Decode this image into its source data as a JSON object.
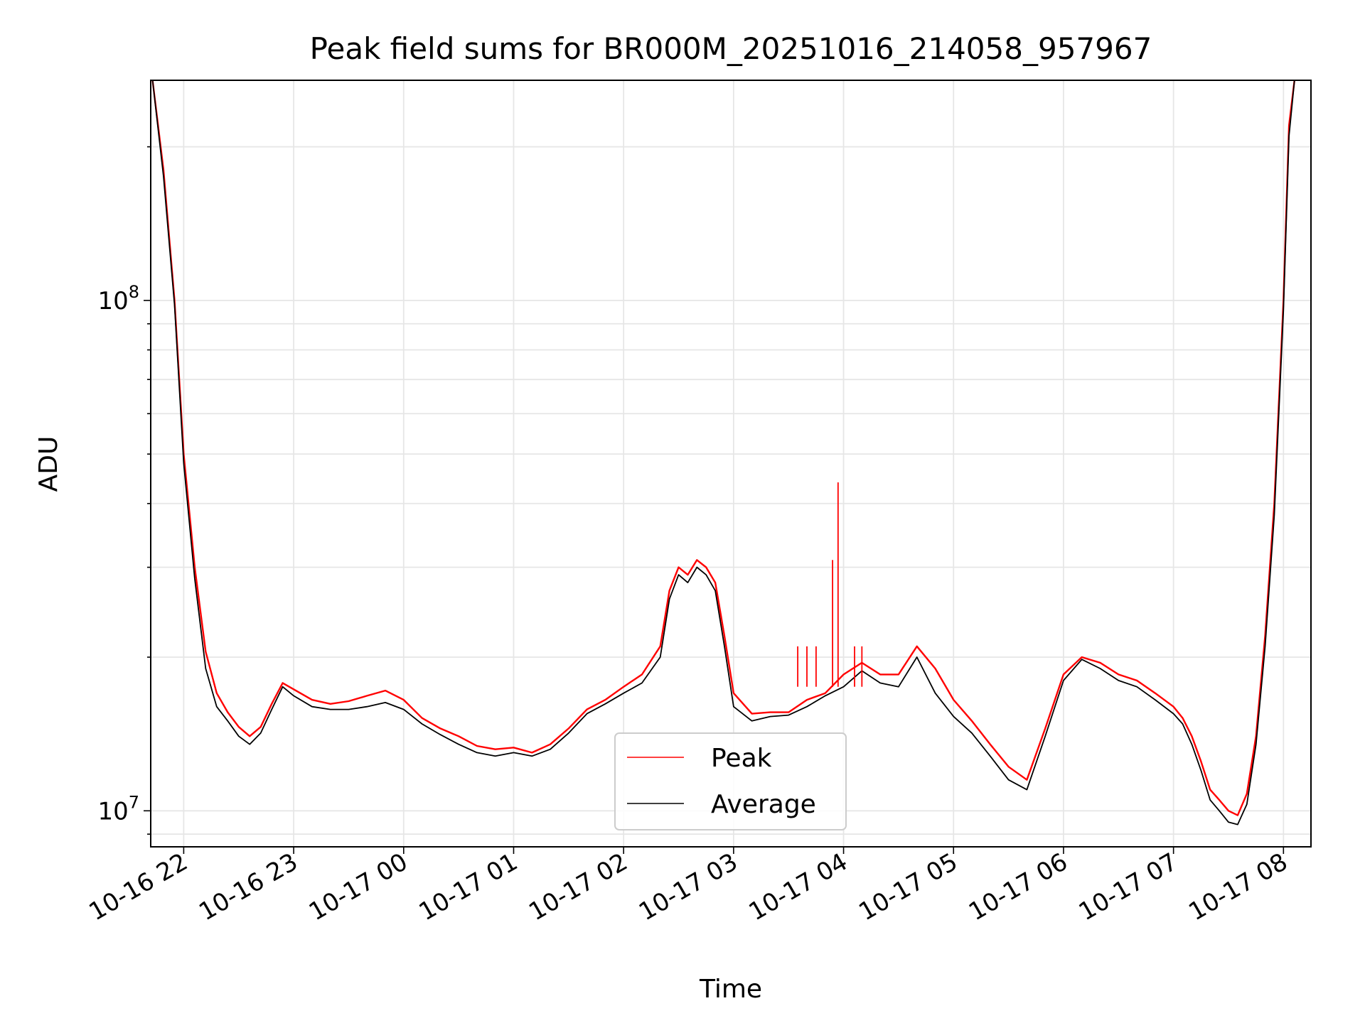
{
  "chart_data": {
    "type": "line",
    "title": "Peak field sums for BR000M_20251016_214058_957967",
    "xlabel": "Time",
    "ylabel": "ADU",
    "yscale": "log",
    "ylim": [
      8500000,
      270000000
    ],
    "xlim": [
      "2025-10-16 21:42",
      "2025-10-17 08:15"
    ],
    "x_ticks": [
      "10-16 22",
      "10-16 23",
      "10-17 00",
      "10-17 01",
      "10-17 02",
      "10-17 03",
      "10-17 04",
      "10-17 05",
      "10-17 06",
      "10-17 07",
      "10-17 08"
    ],
    "y_major_ticks": [
      {
        "value": 10000000,
        "label_base": "10",
        "label_exp": "7"
      },
      {
        "value": 100000000,
        "label_base": "10",
        "label_exp": "8"
      }
    ],
    "grid": true,
    "legend_position": "lower-center",
    "series": [
      {
        "name": "Peak",
        "color": "#ff0000",
        "x": [
          "2025-10-16 21:43",
          "2025-10-16 21:49",
          "2025-10-16 21:55",
          "2025-10-16 22:00",
          "2025-10-16 22:06",
          "2025-10-16 22:12",
          "2025-10-16 22:18",
          "2025-10-16 22:24",
          "2025-10-16 22:30",
          "2025-10-16 22:36",
          "2025-10-16 22:42",
          "2025-10-16 22:48",
          "2025-10-16 22:54",
          "2025-10-16 23:00",
          "2025-10-16 23:10",
          "2025-10-16 23:20",
          "2025-10-16 23:30",
          "2025-10-16 23:40",
          "2025-10-16 23:50",
          "2025-10-17 00:00",
          "2025-10-17 00:10",
          "2025-10-17 00:20",
          "2025-10-17 00:30",
          "2025-10-17 00:40",
          "2025-10-17 00:50",
          "2025-10-17 01:00",
          "2025-10-17 01:10",
          "2025-10-17 01:20",
          "2025-10-17 01:30",
          "2025-10-17 01:40",
          "2025-10-17 01:50",
          "2025-10-17 02:00",
          "2025-10-17 02:10",
          "2025-10-17 02:20",
          "2025-10-17 02:25",
          "2025-10-17 02:30",
          "2025-10-17 02:35",
          "2025-10-17 02:40",
          "2025-10-17 02:45",
          "2025-10-17 02:50",
          "2025-10-17 02:55",
          "2025-10-17 03:00",
          "2025-10-17 03:10",
          "2025-10-17 03:20",
          "2025-10-17 03:30",
          "2025-10-17 03:40",
          "2025-10-17 03:50",
          "2025-10-17 04:00",
          "2025-10-17 04:10",
          "2025-10-17 04:20",
          "2025-10-17 04:30",
          "2025-10-17 04:40",
          "2025-10-17 04:50",
          "2025-10-17 05:00",
          "2025-10-17 05:10",
          "2025-10-17 05:20",
          "2025-10-17 05:30",
          "2025-10-17 05:40",
          "2025-10-17 05:50",
          "2025-10-17 06:00",
          "2025-10-17 06:10",
          "2025-10-17 06:20",
          "2025-10-17 06:30",
          "2025-10-17 06:40",
          "2025-10-17 06:50",
          "2025-10-17 07:00",
          "2025-10-17 07:05",
          "2025-10-17 07:10",
          "2025-10-17 07:15",
          "2025-10-17 07:20",
          "2025-10-17 07:25",
          "2025-10-17 07:30",
          "2025-10-17 07:35",
          "2025-10-17 07:40",
          "2025-10-17 07:45",
          "2025-10-17 07:50",
          "2025-10-17 07:55",
          "2025-10-17 08:00",
          "2025-10-17 08:03",
          "2025-10-17 08:06"
        ],
        "y": [
          270000000,
          180000000,
          100000000,
          50000000,
          30000000,
          20500000,
          17000000,
          15600000,
          14600000,
          14000000,
          14600000,
          16200000,
          17800000,
          17300000,
          16500000,
          16200000,
          16400000,
          16800000,
          17200000,
          16500000,
          15200000,
          14500000,
          14000000,
          13400000,
          13200000,
          13300000,
          13000000,
          13500000,
          14500000,
          15800000,
          16500000,
          17500000,
          18500000,
          21000000,
          27000000,
          30000000,
          29000000,
          31000000,
          30000000,
          28000000,
          22000000,
          17000000,
          15500000,
          15600000,
          15600000,
          16500000,
          17000000,
          18500000,
          19500000,
          18500000,
          18500000,
          21000000,
          19000000,
          16500000,
          15000000,
          13500000,
          12200000,
          11500000,
          14500000,
          18500000,
          20000000,
          19500000,
          18500000,
          18000000,
          17000000,
          16000000,
          15200000,
          14000000,
          12500000,
          11000000,
          10500000,
          10000000,
          9800000,
          10800000,
          14000000,
          22000000,
          40000000,
          100000000,
          220000000,
          270000000
        ]
      },
      {
        "name": "Average",
        "color": "#000000",
        "x": [
          "2025-10-16 21:43",
          "2025-10-16 21:49",
          "2025-10-16 21:55",
          "2025-10-16 22:00",
          "2025-10-16 22:06",
          "2025-10-16 22:12",
          "2025-10-16 22:18",
          "2025-10-16 22:24",
          "2025-10-16 22:30",
          "2025-10-16 22:36",
          "2025-10-16 22:42",
          "2025-10-16 22:48",
          "2025-10-16 22:54",
          "2025-10-16 23:00",
          "2025-10-16 23:10",
          "2025-10-16 23:20",
          "2025-10-16 23:30",
          "2025-10-16 23:40",
          "2025-10-16 23:50",
          "2025-10-17 00:00",
          "2025-10-17 00:10",
          "2025-10-17 00:20",
          "2025-10-17 00:30",
          "2025-10-17 00:40",
          "2025-10-17 00:50",
          "2025-10-17 01:00",
          "2025-10-17 01:10",
          "2025-10-17 01:20",
          "2025-10-17 01:30",
          "2025-10-17 01:40",
          "2025-10-17 01:50",
          "2025-10-17 02:00",
          "2025-10-17 02:10",
          "2025-10-17 02:20",
          "2025-10-17 02:25",
          "2025-10-17 02:30",
          "2025-10-17 02:35",
          "2025-10-17 02:40",
          "2025-10-17 02:45",
          "2025-10-17 02:50",
          "2025-10-17 02:55",
          "2025-10-17 03:00",
          "2025-10-17 03:10",
          "2025-10-17 03:20",
          "2025-10-17 03:30",
          "2025-10-17 03:40",
          "2025-10-17 03:50",
          "2025-10-17 04:00",
          "2025-10-17 04:10",
          "2025-10-17 04:20",
          "2025-10-17 04:30",
          "2025-10-17 04:40",
          "2025-10-17 04:50",
          "2025-10-17 05:00",
          "2025-10-17 05:10",
          "2025-10-17 05:20",
          "2025-10-17 05:30",
          "2025-10-17 05:40",
          "2025-10-17 05:50",
          "2025-10-17 06:00",
          "2025-10-17 06:10",
          "2025-10-17 06:20",
          "2025-10-17 06:30",
          "2025-10-17 06:40",
          "2025-10-17 06:50",
          "2025-10-17 07:00",
          "2025-10-17 07:05",
          "2025-10-17 07:10",
          "2025-10-17 07:15",
          "2025-10-17 07:20",
          "2025-10-17 07:25",
          "2025-10-17 07:30",
          "2025-10-17 07:35",
          "2025-10-17 07:40",
          "2025-10-17 07:45",
          "2025-10-17 07:50",
          "2025-10-17 07:55",
          "2025-10-17 08:00",
          "2025-10-17 08:03",
          "2025-10-17 08:06"
        ],
        "y": [
          270000000,
          175000000,
          98000000,
          48000000,
          28500000,
          19000000,
          16000000,
          15000000,
          14000000,
          13500000,
          14200000,
          15800000,
          17500000,
          16800000,
          16000000,
          15800000,
          15800000,
          16000000,
          16300000,
          15800000,
          14800000,
          14100000,
          13500000,
          13000000,
          12800000,
          13000000,
          12800000,
          13200000,
          14200000,
          15500000,
          16200000,
          17000000,
          17800000,
          20000000,
          26000000,
          29000000,
          28000000,
          30000000,
          29000000,
          27000000,
          21000000,
          16000000,
          15000000,
          15300000,
          15400000,
          16000000,
          16800000,
          17500000,
          18800000,
          17800000,
          17500000,
          20000000,
          17000000,
          15300000,
          14200000,
          12800000,
          11500000,
          11000000,
          14000000,
          18000000,
          19800000,
          19000000,
          18000000,
          17500000,
          16500000,
          15500000,
          14800000,
          13500000,
          12000000,
          10500000,
          10000000,
          9500000,
          9400000,
          10300000,
          13500000,
          21000000,
          38000000,
          96000000,
          210000000,
          270000000
        ]
      }
    ],
    "spikes": {
      "color": "#ff0000",
      "x": [
        "2025-10-17 03:35",
        "2025-10-17 03:40",
        "2025-10-17 03:45",
        "2025-10-17 03:54",
        "2025-10-17 03:57",
        "2025-10-17 04:06",
        "2025-10-17 04:10"
      ],
      "y": [
        21000000,
        21000000,
        21000000,
        31000000,
        44000000,
        21000000,
        21000000
      ]
    }
  }
}
